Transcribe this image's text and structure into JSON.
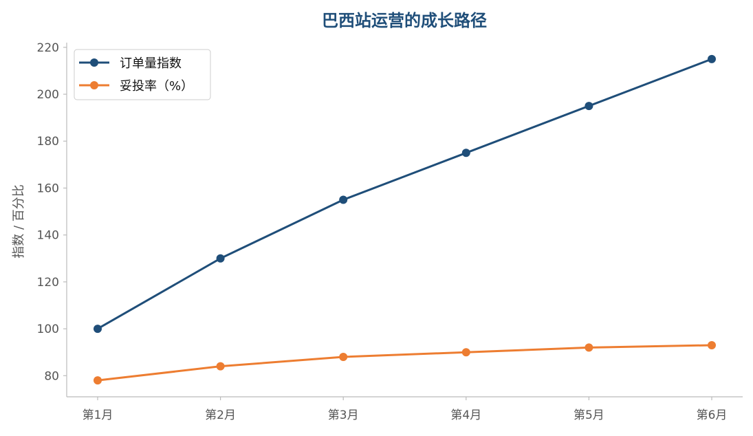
{
  "chart_data": {
    "type": "line",
    "title": "巴西站运营的成长路径",
    "xlabel": "",
    "ylabel": "指数 / 百分比",
    "categories": [
      "第1月",
      "第2月",
      "第3月",
      "第4月",
      "第5月",
      "第6月"
    ],
    "series": [
      {
        "name": "订单量指数",
        "values": [
          100,
          130,
          155,
          175,
          195,
          215
        ],
        "color": "#1f4e79",
        "marker": "circle"
      },
      {
        "name": "妥投率（%）",
        "values": [
          78,
          84,
          88,
          90,
          92,
          93
        ],
        "color": "#ed7d31",
        "marker": "circle"
      }
    ],
    "ylim": [
      71,
      222
    ],
    "yticks": [
      80,
      100,
      120,
      140,
      160,
      180,
      200,
      220
    ],
    "grid": false,
    "legend_position": "top-left",
    "title_color": "#1f4e79",
    "axis_color": "#bbbbbb"
  }
}
